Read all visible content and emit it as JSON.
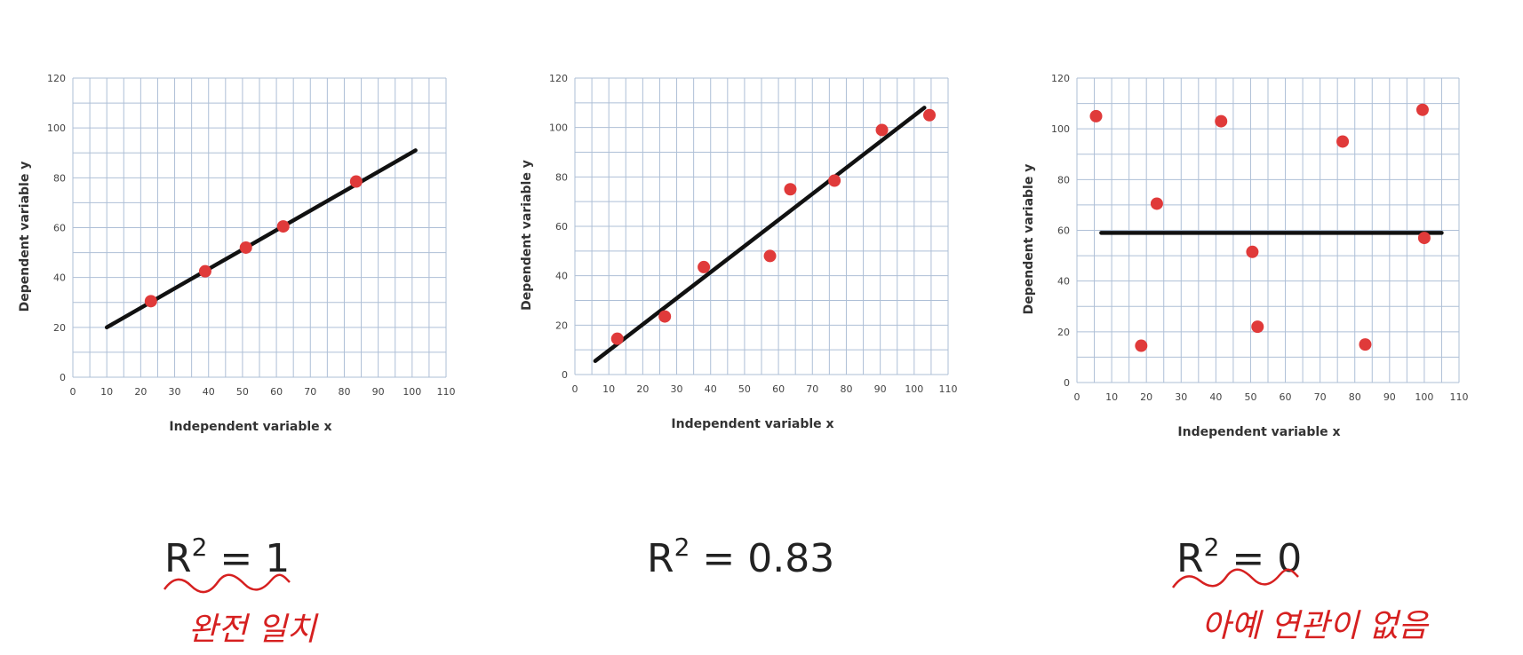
{
  "chart_data": [
    {
      "type": "scatter",
      "xlabel": "Independent variable x",
      "ylabel": "Dependent variable y",
      "xlim": [
        0,
        110
      ],
      "ylim": [
        0,
        120
      ],
      "xticks": [
        0,
        10,
        20,
        30,
        40,
        50,
        60,
        70,
        80,
        90,
        100,
        110
      ],
      "yticks": [
        0,
        20,
        40,
        60,
        80,
        100,
        120
      ],
      "grid": true,
      "points": [
        [
          23,
          30.5
        ],
        [
          39,
          42.5
        ],
        [
          51,
          52
        ],
        [
          62,
          60.5
        ],
        [
          83.5,
          78.5
        ]
      ],
      "fit_line": [
        [
          10,
          20
        ],
        [
          101,
          91
        ]
      ],
      "r2_label": "R",
      "r2_sup": "2",
      "r2_value": "= 1",
      "note": "완전 일치"
    },
    {
      "type": "scatter",
      "xlabel": "Independent variable x",
      "ylabel": "Dependent variable y",
      "xlim": [
        0,
        110
      ],
      "ylim": [
        0,
        120
      ],
      "xticks": [
        0,
        10,
        20,
        30,
        40,
        50,
        60,
        70,
        80,
        90,
        100,
        110
      ],
      "yticks": [
        0,
        20,
        40,
        60,
        80,
        100,
        120
      ],
      "grid": true,
      "points": [
        [
          12.5,
          14.5
        ],
        [
          26.5,
          23.5
        ],
        [
          38,
          43.5
        ],
        [
          57.5,
          48
        ],
        [
          63.5,
          75
        ],
        [
          76.5,
          78.5
        ],
        [
          90.5,
          99
        ],
        [
          104.5,
          105
        ]
      ],
      "fit_line": [
        [
          6,
          5.5
        ],
        [
          103,
          108
        ]
      ],
      "r2_label": "R",
      "r2_sup": "2",
      "r2_value": "= 0.83",
      "note": ""
    },
    {
      "type": "scatter",
      "xlabel": "Independent variable x",
      "ylabel": "Dependent variable y",
      "xlim": [
        0,
        110
      ],
      "ylim": [
        0,
        120
      ],
      "xticks": [
        0,
        10,
        20,
        30,
        40,
        50,
        60,
        70,
        80,
        90,
        100,
        110
      ],
      "yticks": [
        0,
        20,
        40,
        60,
        80,
        100,
        120
      ],
      "grid": true,
      "points": [
        [
          5.5,
          105
        ],
        [
          18.5,
          14.5
        ],
        [
          23,
          70.5
        ],
        [
          41.5,
          103
        ],
        [
          50.5,
          51.5
        ],
        [
          52,
          22
        ],
        [
          76.5,
          95
        ],
        [
          83,
          15
        ],
        [
          99.5,
          107.5
        ],
        [
          100,
          57
        ]
      ],
      "fit_line": [
        [
          7,
          59
        ],
        [
          105,
          59
        ]
      ],
      "r2_label": "R",
      "r2_sup": "2",
      "r2_value": "= 0",
      "note": "아예 연관이 없음"
    }
  ]
}
